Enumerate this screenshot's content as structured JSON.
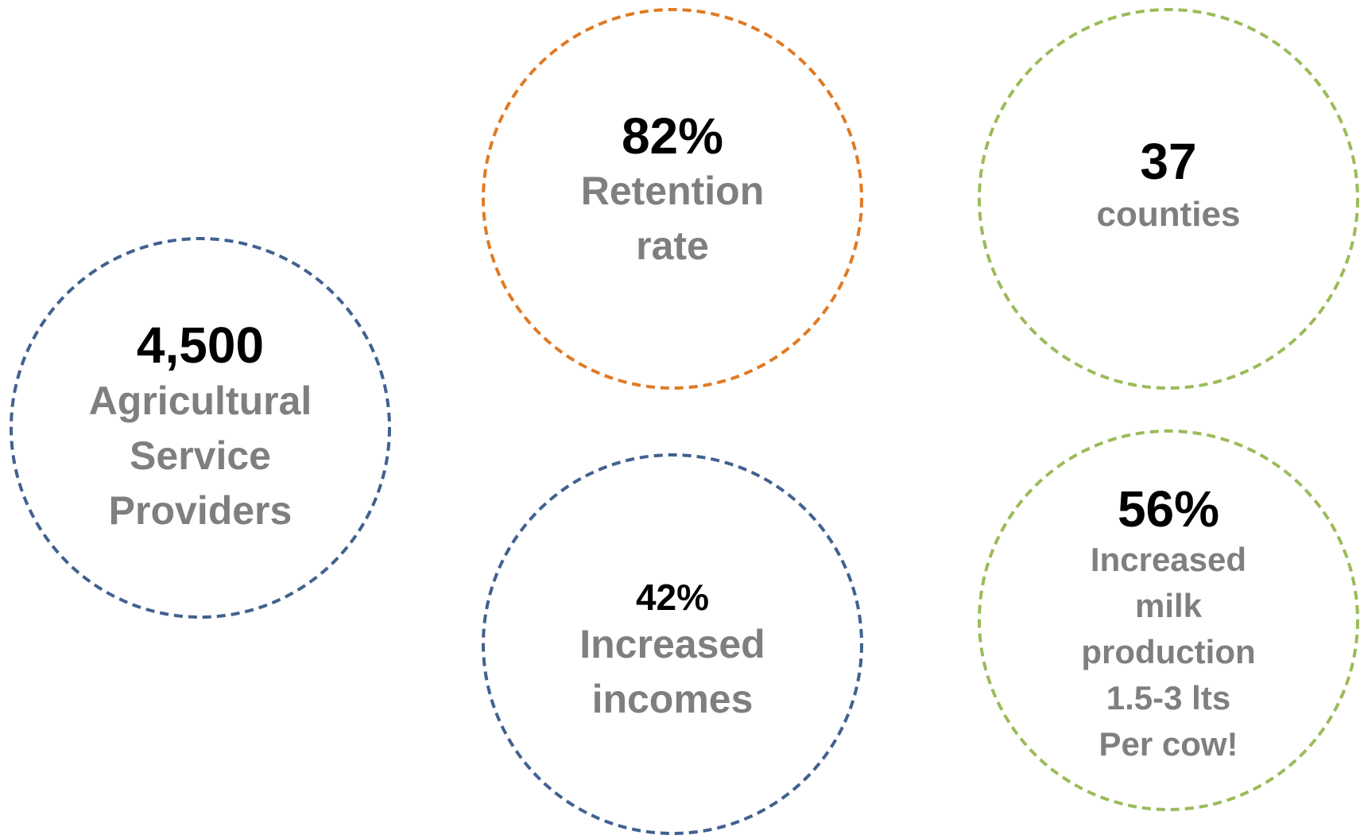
{
  "stats": [
    {
      "id": "asp",
      "value": "4,500",
      "label": "Agricultural\nService\nProviders",
      "color": "#41618f"
    },
    {
      "id": "ret",
      "value": "82%",
      "label": "Retention\nrate",
      "color": "#e07a24"
    },
    {
      "id": "cty",
      "value": "37",
      "label": "counties",
      "color": "#9bbb59"
    },
    {
      "id": "inc",
      "value": "42%",
      "label": "Increased\nincomes",
      "color": "#41618f"
    },
    {
      "id": "milk",
      "value": "56%",
      "label": "Increased\nmilk\nproduction\n1.5-3 lts\nPer cow!",
      "color": "#9bbb59"
    }
  ]
}
